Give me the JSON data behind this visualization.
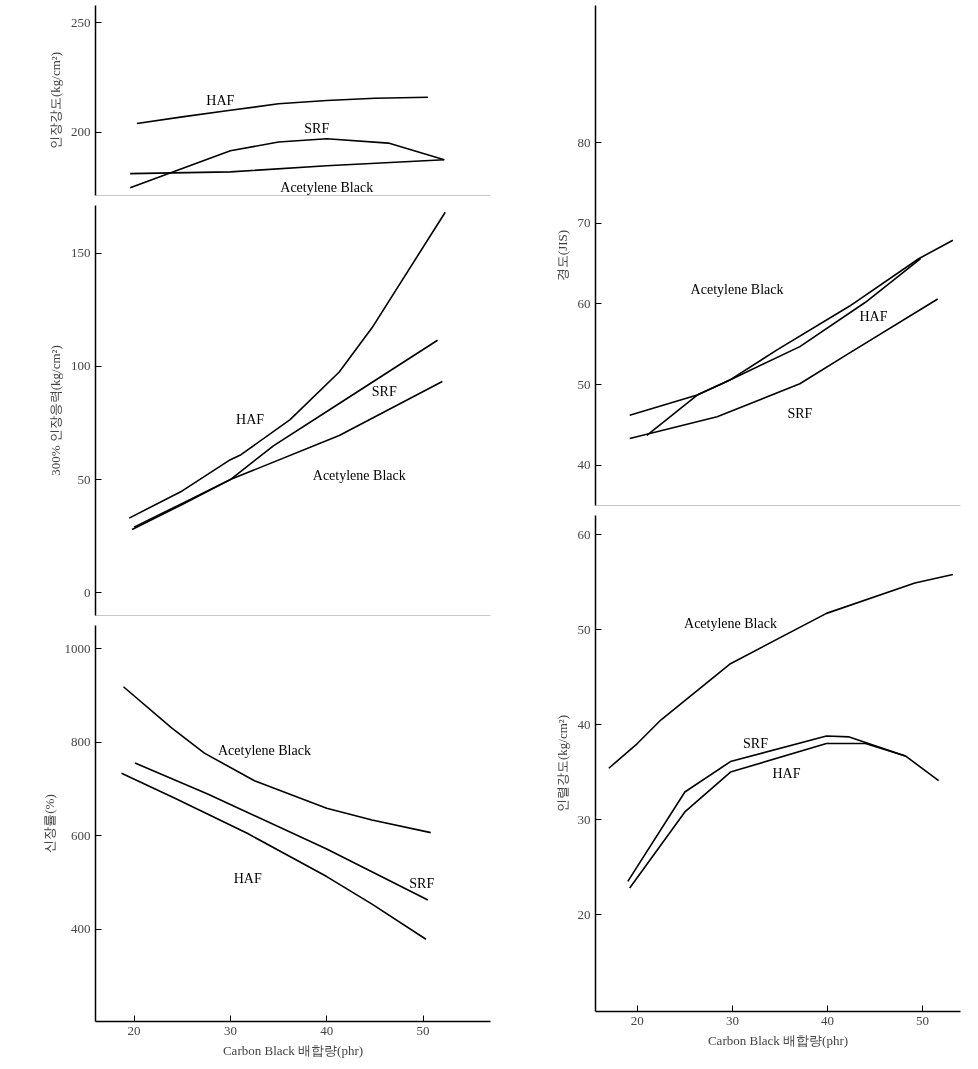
{
  "chart_data": [
    {
      "type": "line",
      "ylabel": "인장강도(kg/cm²)",
      "xlim": [
        16,
        57
      ],
      "ylim": [
        171,
        258
      ],
      "yticks": [
        200,
        250
      ],
      "tick_labels": "y",
      "series": [
        {
          "name": "HAF",
          "color": "#000000",
          "x": [
            20.3,
            25,
            30,
            35,
            40,
            45,
            50.5
          ],
          "values": [
            204,
            207,
            210,
            213,
            214.5,
            215.5,
            216
          ]
        },
        {
          "name": "SRF",
          "color": "#000000",
          "x": [
            19.6,
            24.3,
            30,
            35,
            40,
            46.4,
            52.2
          ],
          "values": [
            174.6,
            182.2,
            191.5,
            195.5,
            197,
            195,
            187.4
          ]
        },
        {
          "name": "Acetylene Black",
          "color": "#000000",
          "x": [
            19.6,
            30,
            40,
            52.2
          ],
          "values": [
            181,
            181.8,
            184.6,
            187.4
          ]
        }
      ]
    },
    {
      "type": "line",
      "ylabel": "300% 인장응력(kg/cm²)",
      "xlim": [
        16,
        57
      ],
      "ylim": [
        -10,
        171
      ],
      "yticks": [
        0,
        50,
        100,
        150
      ],
      "tick_labels": "y",
      "series": [
        {
          "name": "HAF",
          "color": "#000000",
          "x": [
            19.5,
            25,
            30,
            31.1,
            36.2,
            41.3,
            44.7,
            52.3
          ],
          "values": [
            33,
            45,
            58.8,
            61,
            76.5,
            97.5,
            117,
            168
          ]
        },
        {
          "name": "SRF",
          "color": "#000000",
          "x": [
            19.8,
            25,
            30,
            34.5,
            41.3,
            51.5
          ],
          "values": [
            28,
            39,
            50,
            65,
            83.6,
            111.5
          ]
        },
        {
          "name": "Acetylene Black",
          "color": "#000000",
          "x": [
            20,
            25,
            30,
            41.3,
            52
          ],
          "values": [
            29,
            39.5,
            50,
            69.5,
            93.3
          ]
        }
      ]
    },
    {
      "type": "line",
      "ylabel": "신장률(%)",
      "xlabel": "Carbon Black 배합량(phr)",
      "xlim": [
        16,
        57
      ],
      "ylim": [
        203,
        1050
      ],
      "yticks": [
        400,
        600,
        800,
        1000
      ],
      "xticks": [
        20,
        30,
        40,
        50
      ],
      "series": [
        {
          "name": "Acetylene Black",
          "color": "#000000",
          "x": [
            18.9,
            23.9,
            27.3,
            32.5,
            40,
            44.7,
            50.8
          ],
          "values": [
            919,
            831,
            777,
            718,
            659,
            634,
            607
          ]
        },
        {
          "name": "SRF",
          "color": "#000000",
          "x": [
            20.1,
            27.7,
            40,
            50.5
          ],
          "values": [
            756,
            689,
            572,
            463
          ]
        },
        {
          "name": "HAF",
          "color": "#000000",
          "x": [
            18.7,
            24.3,
            31.8,
            40,
            44.7,
            50.3
          ],
          "values": [
            734,
            680,
            605,
            513,
            454,
            379
          ]
        }
      ]
    },
    {
      "type": "line",
      "ylabel": "경도(JIS)",
      "xlim": [
        15.6,
        54
      ],
      "ylim": [
        35,
        97
      ],
      "yticks": [
        40,
        50,
        60,
        70,
        80
      ],
      "tick_labels": "y",
      "series": [
        {
          "name": "Acetylene Black",
          "color": "#000000",
          "x": [
            19.2,
            26.3,
            29.8,
            34.7,
            42.3,
            49.6,
            53.2
          ],
          "values": [
            46.2,
            48.7,
            50.6,
            54.3,
            59.7,
            65.6,
            67.9
          ]
        },
        {
          "name": "HAF",
          "color": "#000000",
          "x": [
            21,
            26.3,
            29.8,
            37.1,
            44,
            49.8
          ],
          "values": [
            43.7,
            48.7,
            50.6,
            54.7,
            60.2,
            65.6
          ]
        },
        {
          "name": "SRF",
          "color": "#000000",
          "x": [
            19.2,
            28.4,
            37.1,
            42.3,
            51.6
          ],
          "values": [
            43.3,
            46,
            50.1,
            53.9,
            60.6
          ]
        }
      ]
    },
    {
      "type": "line",
      "ylabel": "인렬강도(kg/cm²)",
      "xlabel": "Carbon Black 배합량(phr)",
      "xlim": [
        15.6,
        54
      ],
      "ylim": [
        9.8,
        62
      ],
      "yticks": [
        20,
        30,
        40,
        50,
        60
      ],
      "xticks": [
        20,
        30,
        40,
        50
      ],
      "series": [
        {
          "name": "Acetylene Black",
          "color": "#000000",
          "x": [
            17,
            20,
            22.5,
            29.8,
            39.9,
            49.2,
            53.2
          ],
          "values": [
            35.4,
            38,
            40.5,
            46.4,
            51.7,
            54.9,
            55.8
          ]
        },
        {
          "name": "SRF",
          "color": "#000000",
          "x": [
            19,
            25,
            29.8,
            39.9,
            42.3,
            48.2,
            51.7
          ],
          "values": [
            23.5,
            32.9,
            36.1,
            38.8,
            38.7,
            36.7,
            34.1
          ]
        },
        {
          "name": "HAF",
          "color": "#000000",
          "x": [
            19.2,
            25,
            29.8,
            39.9,
            44,
            48.2
          ],
          "values": [
            22.8,
            30.8,
            35,
            38,
            38,
            36.7
          ]
        }
      ]
    }
  ]
}
